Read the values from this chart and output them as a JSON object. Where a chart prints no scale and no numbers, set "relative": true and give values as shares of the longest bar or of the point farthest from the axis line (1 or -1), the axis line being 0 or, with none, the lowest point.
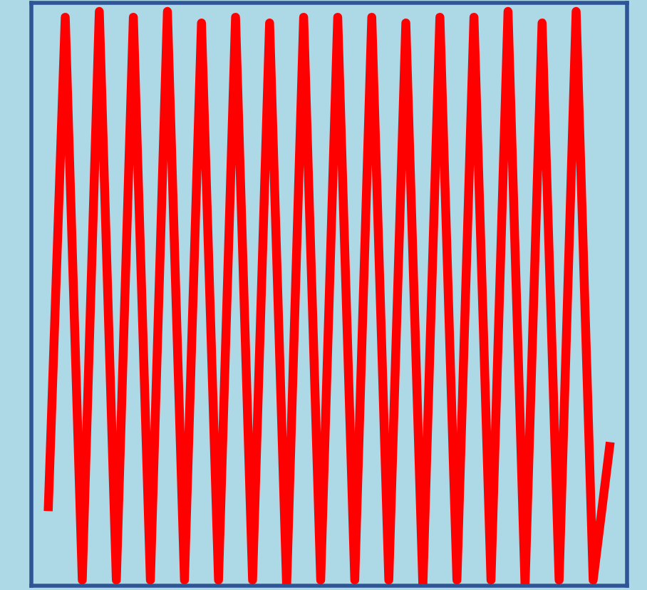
{
  "chart_data": {
    "type": "line",
    "relative": true,
    "categories": [
      null,
      null,
      null,
      null,
      null,
      null,
      null,
      null,
      null,
      null,
      null,
      null,
      null,
      null,
      null,
      null,
      null,
      null,
      null,
      null,
      null,
      null,
      null,
      null,
      null,
      null,
      null,
      null,
      null,
      null,
      null,
      null,
      null,
      null
    ],
    "series": [
      {
        "color": "#ff0000",
        "values": [
          0.13,
          0.99,
          0.01,
          1,
          0.01,
          0.99,
          0.01,
          1,
          0.01,
          0.98,
          0.01,
          0.99,
          0.01,
          0.98,
          0,
          0.99,
          0.01,
          0.99,
          0.01,
          0.99,
          0.01,
          0.98,
          0,
          0.99,
          0.01,
          0.99,
          0.01,
          1,
          0,
          0.98,
          0.01,
          1,
          0.01,
          0.25
        ]
      }
    ],
    "legend": false,
    "marker": "none",
    "line_style": "solid"
  }
}
